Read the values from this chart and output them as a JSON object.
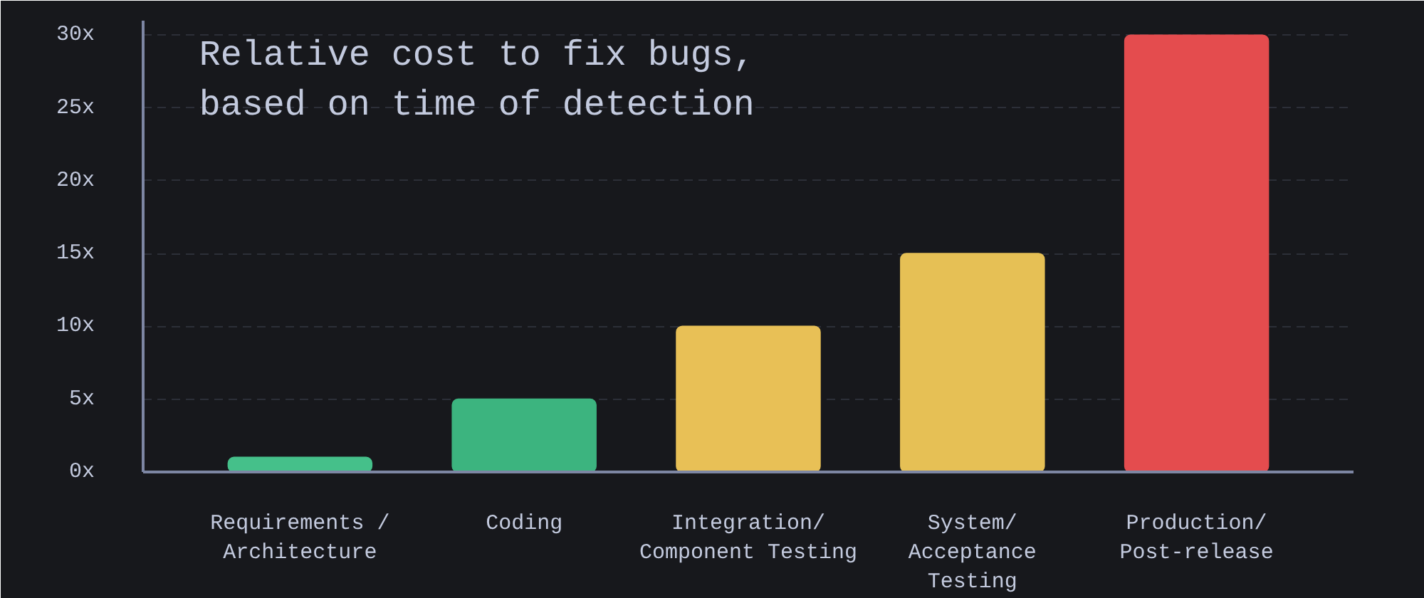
{
  "chart_data": {
    "type": "bar",
    "title": "Relative cost to fix bugs,\nbased on time of detection",
    "categories": [
      "Requirements /\nArchitecture",
      "Coding",
      "Integration/\nComponent Testing",
      "System/\nAcceptance\nTesting",
      "Production/\nPost-release"
    ],
    "values": [
      1,
      5,
      10,
      15,
      30
    ],
    "colors": [
      "#45c08a",
      "#3cb47f",
      "#e8c056",
      "#e6c055",
      "#e44c4e"
    ],
    "ylim": [
      0,
      31
    ],
    "yticks": [
      {
        "value": 0,
        "label": "0x"
      },
      {
        "value": 5,
        "label": "5x"
      },
      {
        "value": 10,
        "label": "10x"
      },
      {
        "value": 15,
        "label": "15x"
      },
      {
        "value": 20,
        "label": "20x"
      },
      {
        "value": 25,
        "label": "25x"
      },
      {
        "value": 30,
        "label": "30x"
      }
    ],
    "grid": "y"
  }
}
